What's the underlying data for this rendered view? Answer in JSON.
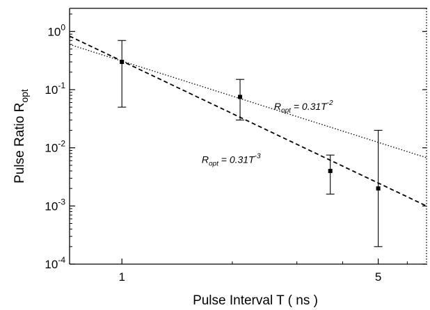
{
  "chart_data": {
    "type": "scatter",
    "title": "",
    "xlabel": "Pulse Interval T ( ns )",
    "ylabel": {
      "main": "Pulse Ratio R",
      "sub": "opt"
    },
    "x_scale": "log",
    "y_scale": "log",
    "xlim": [
      0.72,
      6.8
    ],
    "ylim": [
      0.0001,
      2.5
    ],
    "x_ticks": [
      {
        "value": 1,
        "label": "1"
      },
      {
        "value": 5,
        "label": "5"
      }
    ],
    "y_ticks": [
      {
        "value": 1,
        "base": "10",
        "exp": "0"
      },
      {
        "value": 0.1,
        "base": "10",
        "exp": "-1"
      },
      {
        "value": 0.01,
        "base": "10",
        "exp": "-2"
      },
      {
        "value": 0.001,
        "base": "10",
        "exp": "-3"
      },
      {
        "value": 0.0001,
        "base": "10",
        "exp": "-4"
      }
    ],
    "grid": false,
    "series": [
      {
        "marker": "square",
        "x": [
          1,
          2.1,
          3.7,
          5
        ],
        "y": [
          0.3,
          0.075,
          0.004,
          0.002
        ],
        "err_low": [
          0.05,
          0.03,
          0.0016,
          0.0002
        ],
        "err_high": [
          0.7,
          0.15,
          0.0075,
          0.02
        ]
      }
    ],
    "fits": [
      {
        "style": "dotted",
        "coefficient": 0.31,
        "exponent": -2,
        "label": {
          "var": "R",
          "sub": "opt",
          "eq": " = 0.31T",
          "sup": "-2"
        },
        "label_anchor": {
          "x": 2.6,
          "y": 0.045
        }
      },
      {
        "style": "dashed",
        "coefficient": 0.31,
        "exponent": -3,
        "label": {
          "var": "R",
          "sub": "opt",
          "eq": " = 0.31T",
          "sup": "-3"
        },
        "label_anchor": {
          "x": 1.65,
          "y": 0.0055
        }
      }
    ]
  }
}
